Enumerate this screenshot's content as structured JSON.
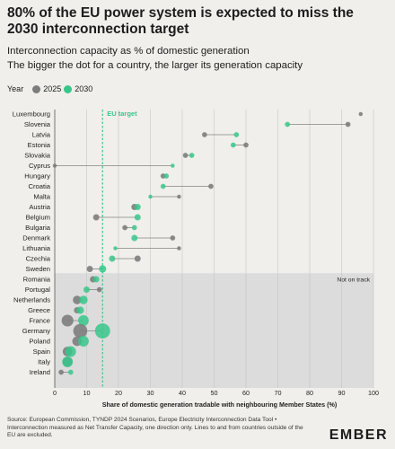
{
  "title": "80% of the EU power system is expected to miss the 2030 interconnection target",
  "subtitle_1": "Interconnection capacity as % of domestic generation",
  "subtitle_2": "The bigger the dot for a country, the larger its generation capacity",
  "legend": {
    "label": "Year",
    "items": [
      "2025",
      "2030"
    ]
  },
  "colors": {
    "y2025": "#7d7d7d",
    "y2030": "#37c78a",
    "connector": "#858585",
    "band": "#dcdcdc",
    "target": "#37c78a"
  },
  "source": "Source: European Commission, TYNDP 2024 Scenarios, Europe Electricity Interconnection Data Tool • Interconnection measured as Net Transfer Capacity, one direction only. Lines to and from countries outside of the EU are excluded.",
  "brand": "EMBER",
  "chart_data": {
    "type": "scatter",
    "xlabel": "Share of domestic generation tradable with neighbouring Member States (%)",
    "xlim": [
      0,
      100
    ],
    "x_ticks": [
      "0",
      "10",
      "20",
      "30",
      "40",
      "50",
      "60",
      "70",
      "80",
      "90",
      "100"
    ],
    "grid": "vertical",
    "target": {
      "value": 15,
      "label": "EU target"
    },
    "band_label": "Not on track",
    "band_start": "Romania",
    "categories": [
      "Luxembourg",
      "Slovenia",
      "Latvia",
      "Estonia",
      "Slovakia",
      "Cyprus",
      "Hungary",
      "Croatia",
      "Malta",
      "Austria",
      "Belgium",
      "Bulgaria",
      "Denmark",
      "Lithuania",
      "Czechia",
      "Sweden",
      "Romania",
      "Portugal",
      "Netherlands",
      "Greece",
      "France",
      "Germany",
      "Poland",
      "Spain",
      "Italy",
      "Ireland"
    ],
    "series": [
      {
        "name": "2025",
        "values": [
          96,
          92,
          47,
          60,
          41,
          0,
          34,
          49,
          39,
          25,
          13,
          22,
          37,
          39,
          26,
          11,
          12,
          14,
          7,
          7,
          4,
          8,
          7,
          4,
          4,
          2
        ]
      },
      {
        "name": "2030",
        "values": [
          null,
          73,
          57,
          56,
          43,
          37,
          35,
          34,
          30,
          26,
          26,
          25,
          25,
          19,
          18,
          15,
          13,
          10,
          9,
          8,
          9,
          15,
          9,
          5,
          4,
          5
        ]
      }
    ],
    "sizes_2025": [
      1,
      2,
      2,
      2,
      2,
      1,
      2,
      2,
      1,
      3,
      3,
      2,
      2,
      1,
      3,
      3,
      3,
      2,
      5,
      3,
      8,
      10,
      6,
      6,
      6,
      2
    ],
    "sizes_2030": [
      1,
      2,
      2,
      2,
      2,
      1,
      2,
      2,
      1,
      3,
      3,
      2,
      3,
      1,
      3,
      4,
      3,
      3,
      5,
      4,
      7,
      11,
      7,
      7,
      7,
      2
    ]
  }
}
